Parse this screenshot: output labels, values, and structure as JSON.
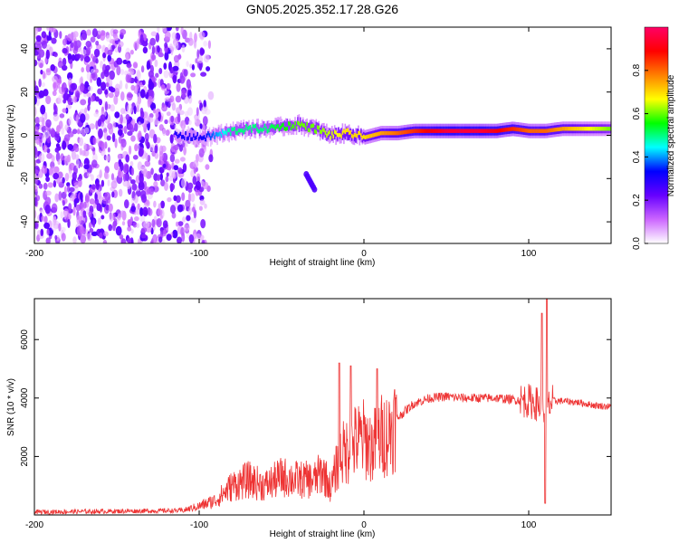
{
  "title": "GN05.2025.352.17.28.G26",
  "chart_data": [
    {
      "type": "heatmap",
      "xlabel": "Height of straight line (km)",
      "ylabel": "Frequency (Hz)",
      "xlim": [
        -200,
        150
      ],
      "ylim": [
        -50,
        50
      ],
      "xticks": [
        -200,
        -100,
        0,
        100
      ],
      "yticks": [
        -40,
        -20,
        0,
        20,
        40
      ],
      "colorbar": {
        "label": "Normalized spectral amplitude",
        "range": [
          0,
          1
        ],
        "ticks": [
          "0.0",
          "0.2",
          "0.4",
          "0.6",
          "0.8"
        ],
        "tick_values": [
          0,
          0.2,
          0.4,
          0.6,
          0.8
        ],
        "colors": [
          "#ffffff",
          "#cc66ff",
          "#6600ff",
          "#0000ff",
          "#00ffff",
          "#00ff00",
          "#ffff00",
          "#ff8000",
          "#ff0000",
          "#ff0066"
        ]
      },
      "scatter_region": {
        "x": [
          -200,
          -90
        ],
        "y": [
          -50,
          50
        ],
        "amplitude": "0.05-0.25"
      },
      "ridge": {
        "description": "signal band near 0 Hz",
        "x": [
          -115,
          -100,
          -90,
          -80,
          -70,
          -60,
          -50,
          -40,
          -30,
          -20,
          -10,
          0,
          10,
          20,
          30,
          40,
          50,
          60,
          70,
          80,
          90,
          100,
          110,
          120,
          130,
          140,
          150
        ],
        "y": [
          0,
          -1,
          0,
          2,
          3,
          3,
          4,
          5,
          3,
          0,
          1,
          -1,
          1,
          1,
          2,
          2,
          2,
          2,
          2,
          2,
          3,
          2,
          2,
          3,
          3,
          3,
          3
        ],
        "amplitude": [
          0.3,
          0.3,
          0.4,
          0.5,
          0.5,
          0.5,
          0.55,
          0.6,
          0.6,
          0.65,
          0.7,
          0.7,
          0.75,
          0.8,
          0.85,
          0.9,
          0.95,
          0.95,
          0.95,
          0.9,
          0.85,
          0.8,
          0.8,
          0.75,
          0.7,
          0.65,
          0.6
        ]
      },
      "secondary_feature": {
        "x": [
          -35,
          -30
        ],
        "y": [
          -18,
          -25
        ],
        "amplitude": 0.25
      }
    },
    {
      "type": "line",
      "xlabel": "Height of straight line (km)",
      "ylabel": "SNR (10 * v/v)",
      "xlim": [
        -200,
        150
      ],
      "ylim": [
        0,
        7400
      ],
      "xticks": [
        -200,
        -100,
        0,
        100
      ],
      "yticks": [
        2000,
        4000,
        6000
      ],
      "color": "#ee3333",
      "envelope": {
        "x": [
          -200,
          -110,
          -100,
          -90,
          -80,
          -70,
          -60,
          -50,
          -40,
          -30,
          -25,
          -20,
          -15,
          -10,
          -5,
          0,
          5,
          10,
          15,
          20,
          30,
          40,
          50,
          60,
          70,
          80,
          90,
          100,
          105,
          110,
          115,
          120,
          130,
          140,
          150
        ],
        "y": [
          100,
          150,
          300,
          500,
          1000,
          1200,
          1000,
          1300,
          1200,
          1200,
          1500,
          900,
          2000,
          2200,
          2500,
          2600,
          2300,
          2700,
          2800,
          3300,
          3800,
          4000,
          4050,
          4000,
          4000,
          4000,
          3950,
          3900,
          3800,
          3600,
          3900,
          3900,
          3850,
          3750,
          3700
        ]
      },
      "spikes": [
        {
          "x": -15,
          "y": 5200
        },
        {
          "x": -8,
          "y": 5100
        },
        {
          "x": 8,
          "y": 5000
        },
        {
          "x": 108,
          "y": 6900
        },
        {
          "x": 111,
          "y": 7400
        },
        {
          "x": 110,
          "y": 400
        }
      ]
    }
  ]
}
